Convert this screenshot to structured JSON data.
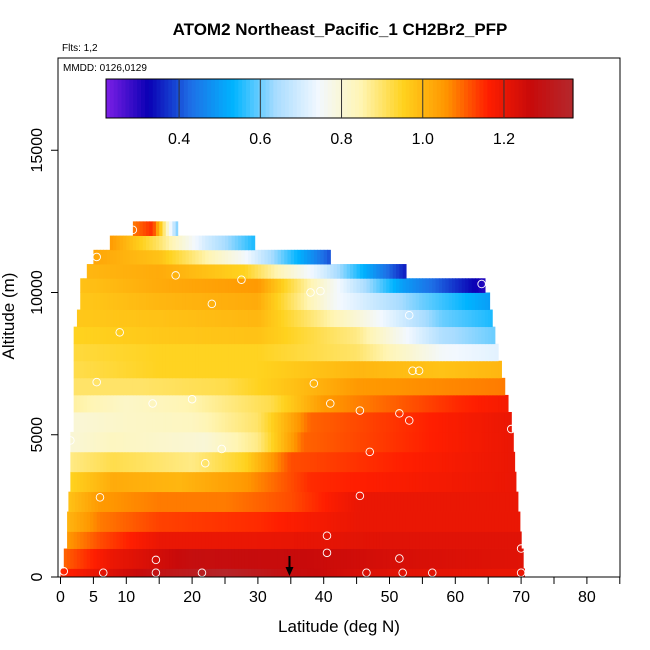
{
  "chart_data": {
    "type": "heatmap",
    "title": "ATOM2 Northeast_Pacific_1 CH2Br2_PFP",
    "annotations": [
      "Flts: 1,2",
      "MMDD: 0126,0129"
    ],
    "xlabel": "Latitude (deg N)",
    "ylabel": "Altitude (m)",
    "xlim": [
      0,
      85
    ],
    "ylim": [
      0,
      18000
    ],
    "x_ticks": [
      0,
      5,
      10,
      20,
      30,
      40,
      50,
      60,
      70,
      80
    ],
    "y_ticks": [
      0,
      5000,
      10000,
      15000
    ],
    "colorbar": {
      "range": [
        0.22,
        1.37
      ],
      "ticks": [
        0.4,
        0.6,
        0.8,
        1.0,
        1.2
      ],
      "tick_labels": [
        "0.4",
        "0.6",
        "0.8",
        "1.0",
        "1.2"
      ],
      "colors": [
        "#7d1fe6",
        "#0a00b4",
        "#1e6fe6",
        "#00b4ff",
        "#a8dcff",
        "#f2f8ff",
        "#fff5b4",
        "#ffd21e",
        "#ff9600",
        "#ff1e00",
        "#c80a0a",
        "#b4282d"
      ]
    },
    "altitude_bands": [
      {
        "z0": 0,
        "z1": 300,
        "lat_max": 70.5,
        "values": [
          [
            0,
            1.15
          ],
          [
            5,
            1.2
          ],
          [
            15,
            1.3
          ],
          [
            25,
            1.36
          ],
          [
            35,
            1.28
          ],
          [
            50,
            1.22
          ],
          [
            70.5,
            1.2
          ]
        ]
      },
      {
        "z0": 300,
        "z1": 1000,
        "lat_max": 70.3,
        "values": [
          [
            0.5,
            1.1
          ],
          [
            8,
            1.2
          ],
          [
            20,
            1.28
          ],
          [
            35,
            1.27
          ],
          [
            50,
            1.24
          ],
          [
            70.3,
            1.22
          ]
        ]
      },
      {
        "z0": 1000,
        "z1": 1600,
        "lat_max": 70,
        "values": [
          [
            1,
            1.05
          ],
          [
            6,
            1.12
          ],
          [
            15,
            1.2
          ],
          [
            30,
            1.2
          ],
          [
            50,
            1.22
          ],
          [
            70,
            1.22
          ]
        ]
      },
      {
        "z0": 1600,
        "z1": 2300,
        "lat_max": 69.8,
        "values": [
          [
            1,
            1.0
          ],
          [
            6,
            1.08
          ],
          [
            15,
            1.13
          ],
          [
            30,
            1.15
          ],
          [
            45,
            1.2
          ],
          [
            69.8,
            1.2
          ]
        ]
      },
      {
        "z0": 2300,
        "z1": 3000,
        "lat_max": 69.5,
        "values": [
          [
            1.2,
            0.98
          ],
          [
            6,
            1.05
          ],
          [
            15,
            1.08
          ],
          [
            25,
            1.08
          ],
          [
            35,
            1.12
          ],
          [
            45,
            1.2
          ],
          [
            69.5,
            1.2
          ]
        ]
      },
      {
        "z0": 3000,
        "z1": 3700,
        "lat_max": 69.2,
        "values": [
          [
            1.5,
            0.95
          ],
          [
            8,
            1.02
          ],
          [
            18,
            1.0
          ],
          [
            28,
            1.05
          ],
          [
            38,
            1.15
          ],
          [
            69.2,
            1.2
          ]
        ]
      },
      {
        "z0": 3700,
        "z1": 4400,
        "lat_max": 69,
        "values": [
          [
            1.5,
            0.88
          ],
          [
            8,
            0.92
          ],
          [
            20,
            0.88
          ],
          [
            28,
            0.95
          ],
          [
            35,
            1.12
          ],
          [
            69,
            1.2
          ]
        ]
      },
      {
        "z0": 4400,
        "z1": 5100,
        "lat_max": 68.8,
        "values": [
          [
            1.5,
            0.8
          ],
          [
            8,
            0.83
          ],
          [
            22,
            0.8
          ],
          [
            30,
            0.88
          ],
          [
            37,
            1.1
          ],
          [
            68.8,
            1.2
          ]
        ]
      },
      {
        "z0": 5100,
        "z1": 5800,
        "lat_max": 68.5,
        "values": [
          [
            2,
            0.8
          ],
          [
            10,
            0.82
          ],
          [
            20,
            0.83
          ],
          [
            30,
            0.9
          ],
          [
            38,
            1.1
          ],
          [
            68.5,
            1.2
          ]
        ]
      },
      {
        "z0": 5800,
        "z1": 6400,
        "lat_max": 68,
        "values": [
          [
            2,
            0.86
          ],
          [
            10,
            0.82
          ],
          [
            20,
            0.85
          ],
          [
            32,
            0.92
          ],
          [
            40,
            1.05
          ],
          [
            60,
            1.15
          ],
          [
            68,
            1.18
          ]
        ]
      },
      {
        "z0": 6400,
        "z1": 7000,
        "lat_max": 67.5,
        "values": [
          [
            2,
            0.9
          ],
          [
            12,
            0.9
          ],
          [
            25,
            0.92
          ],
          [
            35,
            0.98
          ],
          [
            45,
            1.05
          ],
          [
            67.5,
            1.08
          ]
        ]
      },
      {
        "z0": 7000,
        "z1": 7600,
        "lat_max": 67,
        "values": [
          [
            2,
            0.92
          ],
          [
            15,
            0.95
          ],
          [
            30,
            0.95
          ],
          [
            45,
            1.0
          ],
          [
            58,
            0.98
          ],
          [
            67,
            1.0
          ]
        ]
      },
      {
        "z0": 7600,
        "z1": 8200,
        "lat_max": 66.5,
        "values": [
          [
            2,
            0.93
          ],
          [
            15,
            0.95
          ],
          [
            30,
            0.95
          ],
          [
            45,
            0.9
          ],
          [
            58,
            0.75
          ],
          [
            66.5,
            0.72
          ]
        ]
      },
      {
        "z0": 8200,
        "z1": 8800,
        "lat_max": 66,
        "values": [
          [
            2,
            0.95
          ],
          [
            15,
            0.97
          ],
          [
            30,
            0.98
          ],
          [
            45,
            0.88
          ],
          [
            58,
            0.65
          ],
          [
            66,
            0.6
          ]
        ]
      },
      {
        "z0": 8800,
        "z1": 9400,
        "lat_max": 65.6,
        "values": [
          [
            2.5,
            0.97
          ],
          [
            15,
            0.98
          ],
          [
            30,
            1.0
          ],
          [
            45,
            0.8
          ],
          [
            58,
            0.6
          ],
          [
            65.6,
            0.55
          ]
        ]
      },
      {
        "z0": 9400,
        "z1": 10000,
        "lat_max": 65.2,
        "values": [
          [
            3,
            0.97
          ],
          [
            15,
            1.0
          ],
          [
            30,
            1.02
          ],
          [
            42,
            0.75
          ],
          [
            55,
            0.6
          ],
          [
            65.2,
            0.5
          ]
        ]
      },
      {
        "z0": 10000,
        "z1": 10500,
        "lat_max": 64.5,
        "values": [
          [
            3,
            0.98
          ],
          [
            15,
            1.02
          ],
          [
            30,
            1.05
          ],
          [
            40,
            0.8
          ],
          [
            52,
            0.5
          ],
          [
            64.5,
            0.3
          ]
        ]
      },
      {
        "z0": 10500,
        "z1": 11000,
        "lat_max": 52.5,
        "values": [
          [
            4,
            1.0
          ],
          [
            15,
            1.02
          ],
          [
            28,
            0.95
          ],
          [
            40,
            0.7
          ],
          [
            52.5,
            0.35
          ]
        ]
      },
      {
        "z0": 11000,
        "z1": 11500,
        "lat_max": 41,
        "values": [
          [
            5,
            1.03
          ],
          [
            15,
            0.98
          ],
          [
            28,
            0.75
          ],
          [
            41,
            0.4
          ]
        ]
      },
      {
        "z0": 11500,
        "z1": 12000,
        "lat_max": 29.5,
        "values": [
          [
            7.5,
            1.05
          ],
          [
            15,
            0.9
          ],
          [
            22,
            0.7
          ],
          [
            29.5,
            0.55
          ]
        ]
      },
      {
        "z0": 12000,
        "z1": 12500,
        "lat_max": 17.8,
        "values": [
          [
            11,
            1.08
          ],
          [
            14,
            1.15
          ],
          [
            16,
            0.85
          ],
          [
            17.8,
            0.6
          ]
        ]
      }
    ],
    "samples": [
      [
        0.5,
        200
      ],
      [
        6.5,
        150
      ],
      [
        14.5,
        150
      ],
      [
        21.5,
        150
      ],
      [
        46.5,
        150
      ],
      [
        52,
        150
      ],
      [
        56.5,
        150
      ],
      [
        70,
        150
      ],
      [
        14.5,
        600
      ],
      [
        40.5,
        850
      ],
      [
        51.5,
        650
      ],
      [
        70,
        1000
      ],
      [
        40.5,
        1450
      ],
      [
        6,
        2800
      ],
      [
        45.5,
        2850
      ],
      [
        47,
        4400
      ],
      [
        24.5,
        4500
      ],
      [
        22,
        4000
      ],
      [
        1.5,
        4800
      ],
      [
        68.5,
        5200
      ],
      [
        53,
        5500
      ],
      [
        51.5,
        5750
      ],
      [
        45.5,
        5850
      ],
      [
        14,
        6100
      ],
      [
        20,
        6250
      ],
      [
        41,
        6100
      ],
      [
        5.5,
        6850
      ],
      [
        38.5,
        6800
      ],
      [
        53.5,
        7250
      ],
      [
        54.5,
        7250
      ],
      [
        9,
        8600
      ],
      [
        53,
        9200
      ],
      [
        23,
        9600
      ],
      [
        38,
        10000
      ],
      [
        39.5,
        10050
      ],
      [
        64,
        10300
      ],
      [
        27.5,
        10450
      ],
      [
        17.5,
        10600
      ],
      [
        5.5,
        11250
      ],
      [
        11,
        12200
      ]
    ],
    "arrow_lat": 34.8
  }
}
